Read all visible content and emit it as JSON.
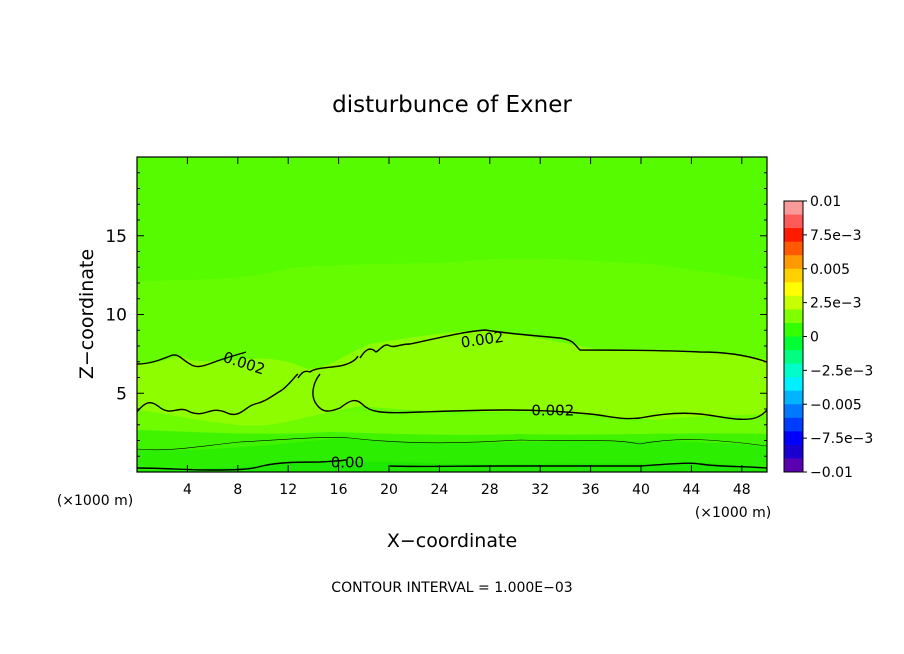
{
  "chart_data": {
    "type": "heatmap",
    "title": "disturbunce of Exner",
    "xlabel": "X−coordinate",
    "ylabel": "Z−coordinate",
    "x_unit_left": "(×1000 m)",
    "x_unit_right": "(×1000 m)",
    "footer": "CONTOUR INTERVAL = 1.000E−03",
    "xlim": [
      0,
      50
    ],
    "ylim": [
      0,
      20
    ],
    "xticks": [
      4,
      8,
      12,
      16,
      20,
      24,
      28,
      32,
      36,
      40,
      44,
      48
    ],
    "yticks": [
      5,
      10,
      15
    ],
    "colorbar": {
      "range": [
        -0.01,
        0.01
      ],
      "tick_values": [
        0.01,
        0.0075,
        0.005,
        0.0025,
        0,
        -0.0025,
        -0.005,
        -0.0075,
        -0.01
      ],
      "tick_labels": [
        "0.01",
        "7.5e−3",
        "0.005",
        "2.5e−3",
        "0",
        "−2.5e−3",
        "−0.005",
        "−7.5e−3",
        "−0.01"
      ],
      "colors": [
        "#f99a9a",
        "#ff5a5a",
        "#ff1a00",
        "#ff5a00",
        "#ff9900",
        "#ffd000",
        "#ffff00",
        "#c8ff00",
        "#80ff00",
        "#33ff00",
        "#00ff33",
        "#00ff80",
        "#00ffc8",
        "#00f0ff",
        "#00b4ff",
        "#0078ff",
        "#003cff",
        "#0000ff",
        "#1a00d0",
        "#5a00b0"
      ]
    },
    "contour_labels": [
      {
        "text": "0.002",
        "x": 27.4,
        "y": 8.4
      },
      {
        "text": "0.002",
        "x": 8.5,
        "y": 6.9
      },
      {
        "text": "0.002",
        "x": 33.0,
        "y": 3.9
      },
      {
        "text": "0.00",
        "x": 16.7,
        "y": 0.6
      }
    ],
    "field_colors": {
      "v0_0001": "#56fb00",
      "v0_0013": "#66fc00",
      "v0_0025": "#8dfd00",
      "v0_0017": "#6ffb00",
      "v0_0008": "#40f400",
      "v0_0004": "#2cee00",
      "v0_0000": "#1ee800"
    }
  }
}
